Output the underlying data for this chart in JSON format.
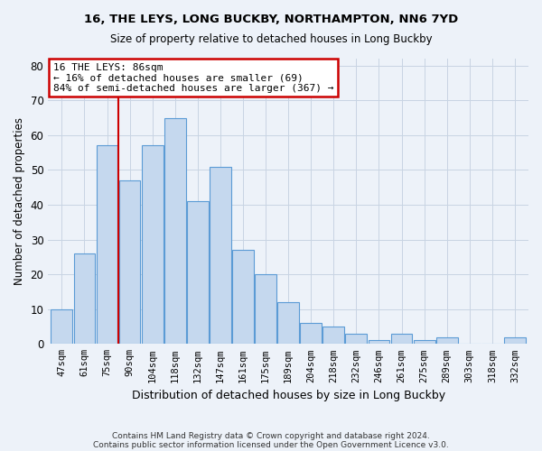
{
  "title": "16, THE LEYS, LONG BUCKBY, NORTHAMPTON, NN6 7YD",
  "subtitle": "Size of property relative to detached houses in Long Buckby",
  "xlabel": "Distribution of detached houses by size in Long Buckby",
  "ylabel": "Number of detached properties",
  "footer1": "Contains HM Land Registry data © Crown copyright and database right 2024.",
  "footer2": "Contains public sector information licensed under the Open Government Licence v3.0.",
  "categories": [
    "47sqm",
    "61sqm",
    "75sqm",
    "90sqm",
    "104sqm",
    "118sqm",
    "132sqm",
    "147sqm",
    "161sqm",
    "175sqm",
    "189sqm",
    "204sqm",
    "218sqm",
    "232sqm",
    "246sqm",
    "261sqm",
    "275sqm",
    "289sqm",
    "303sqm",
    "318sqm",
    "332sqm"
  ],
  "values": [
    10,
    26,
    57,
    47,
    57,
    65,
    41,
    51,
    27,
    20,
    12,
    6,
    5,
    3,
    1,
    3,
    1,
    2,
    0,
    0,
    2
  ],
  "bar_color": "#c5d8ee",
  "bar_edge_color": "#5b9bd5",
  "grid_color": "#c8d4e3",
  "background_color": "#edf2f9",
  "annotation_line1": "16 THE LEYS: 86sqm",
  "annotation_line2": "← 16% of detached houses are smaller (69)",
  "annotation_line3": "84% of semi-detached houses are larger (367) →",
  "annotation_box_color": "white",
  "annotation_box_edge_color": "#cc0000",
  "vline_color": "#cc0000",
  "vline_x_index": 2.5,
  "ylim": [
    0,
    82
  ],
  "yticks": [
    0,
    10,
    20,
    30,
    40,
    50,
    60,
    70,
    80
  ]
}
